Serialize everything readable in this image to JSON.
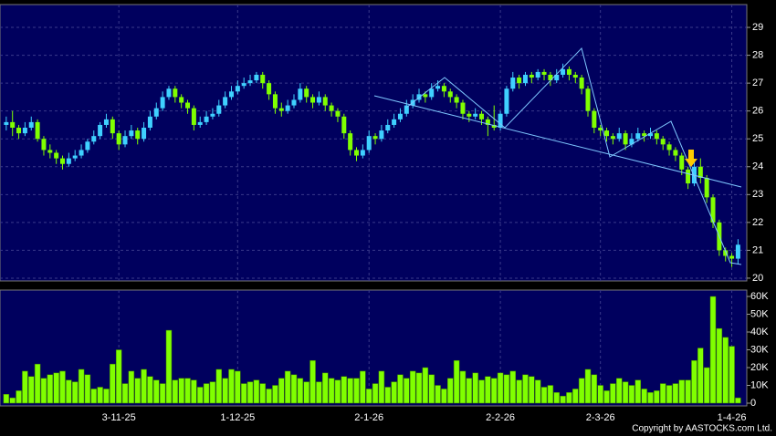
{
  "chart_data": {
    "type": "candlestick",
    "xlim": [
      -1,
      118.4
    ],
    "xticks": [
      {
        "value": 18,
        "label": "3-11-25"
      },
      {
        "value": 37,
        "label": "1-12-25"
      },
      {
        "value": 58,
        "label": "2-1-26"
      },
      {
        "value": 79,
        "label": "2-2-26"
      },
      {
        "value": 95,
        "label": "2-3-26"
      },
      {
        "value": 116,
        "label": "1-4-26"
      }
    ],
    "ylim": [
      19.9,
      29.82
    ],
    "yticks": [
      20,
      21,
      22,
      23,
      24,
      25,
      26,
      27,
      28,
      29
    ],
    "grid": true,
    "up_color": "#3fd0ff",
    "down_color": "#80ff00",
    "open": [
      25.5,
      25.6,
      25.4,
      25.2,
      25.4,
      25.6,
      25.0,
      24.6,
      24.5,
      24.3,
      24.1,
      24.3,
      24.4,
      24.6,
      24.9,
      25.1,
      25.5,
      25.7,
      25.2,
      24.8,
      25.1,
      25.3,
      25.0,
      25.4,
      25.8,
      26.1,
      26.5,
      26.8,
      26.5,
      26.3,
      26.1,
      25.5,
      25.6,
      25.8,
      25.9,
      26.2,
      26.5,
      26.7,
      26.9,
      27.0,
      27.1,
      27.3,
      27.0,
      26.6,
      26.1,
      26.0,
      26.2,
      26.4,
      26.8,
      26.5,
      26.3,
      26.5,
      26.2,
      26.0,
      25.8,
      25.2,
      24.6,
      24.4,
      24.6,
      25.1,
      25.0,
      25.3,
      25.5,
      25.7,
      25.9,
      26.2,
      26.4,
      26.6,
      26.5,
      26.8,
      26.9,
      26.7,
      26.5,
      26.3,
      25.9,
      25.8,
      25.9,
      25.7,
      25.5,
      25.4,
      25.9,
      26.8,
      27.2,
      27.0,
      27.3,
      27.2,
      27.4,
      27.3,
      27.1,
      27.3,
      27.5,
      27.3,
      27.2,
      26.8,
      26.0,
      25.4,
      25.3,
      25.1,
      25.0,
      25.2,
      24.8,
      25.0,
      25.2,
      25.1,
      25.2,
      25.0,
      24.8,
      24.6,
      24.4,
      23.9,
      23.4,
      24.0,
      23.6,
      22.9,
      22.0,
      21.0,
      20.8,
      20.7
    ],
    "high": [
      25.8,
      26.0,
      25.5,
      25.6,
      25.8,
      25.7,
      25.1,
      24.8,
      24.6,
      24.4,
      24.5,
      24.6,
      24.8,
      25.0,
      25.3,
      25.6,
      25.9,
      25.8,
      25.3,
      25.3,
      25.5,
      25.4,
      25.6,
      26.0,
      26.3,
      26.7,
      26.9,
      26.9,
      26.6,
      26.4,
      26.2,
      25.8,
      26.0,
      26.1,
      26.4,
      26.7,
      26.9,
      27.1,
      27.2,
      27.3,
      27.4,
      27.4,
      27.1,
      26.7,
      26.3,
      26.4,
      26.6,
      27.0,
      26.9,
      26.6,
      26.7,
      26.6,
      26.3,
      26.1,
      25.9,
      25.3,
      24.7,
      24.8,
      25.3,
      25.2,
      25.5,
      25.7,
      25.9,
      26.1,
      26.4,
      26.6,
      26.8,
      26.7,
      27.0,
      27.1,
      27.0,
      26.8,
      26.6,
      26.4,
      26.0,
      26.1,
      26.0,
      25.8,
      26.2,
      26.0,
      26.9,
      27.4,
      27.3,
      27.4,
      27.4,
      27.5,
      27.5,
      27.4,
      27.5,
      27.7,
      27.6,
      27.4,
      27.3,
      26.9,
      26.1,
      25.5,
      25.4,
      25.2,
      25.4,
      25.3,
      25.2,
      25.4,
      25.3,
      25.4,
      25.3,
      25.1,
      24.9,
      24.7,
      24.5,
      24.0,
      24.2,
      24.3,
      23.7,
      23.0,
      22.1,
      21.1,
      20.9,
      21.4
    ],
    "low": [
      25.3,
      25.1,
      25.0,
      25.1,
      25.3,
      24.9,
      24.4,
      24.3,
      24.1,
      23.9,
      24.0,
      24.2,
      24.3,
      24.5,
      24.8,
      25.0,
      25.4,
      25.0,
      24.6,
      24.7,
      25.0,
      24.8,
      24.9,
      25.3,
      25.7,
      26.0,
      26.4,
      26.3,
      26.1,
      25.9,
      25.3,
      25.4,
      25.5,
      25.7,
      25.8,
      26.1,
      26.4,
      26.6,
      26.8,
      26.9,
      27.0,
      26.8,
      26.4,
      25.9,
      25.8,
      25.9,
      26.1,
      26.3,
      26.3,
      26.1,
      26.2,
      26.0,
      25.8,
      25.6,
      25.0,
      24.4,
      24.2,
      24.3,
      24.5,
      24.8,
      24.9,
      25.2,
      25.4,
      25.6,
      25.8,
      26.1,
      26.3,
      26.3,
      26.4,
      26.7,
      26.5,
      26.3,
      26.1,
      25.7,
      25.6,
      25.7,
      25.5,
      25.1,
      25.3,
      25.3,
      25.8,
      26.7,
      26.8,
      26.9,
      27.0,
      27.1,
      27.1,
      26.9,
      27.0,
      27.2,
      27.1,
      27.0,
      26.6,
      25.8,
      25.2,
      25.1,
      24.9,
      24.8,
      24.9,
      24.6,
      24.7,
      24.9,
      24.9,
      25.0,
      24.8,
      24.6,
      24.4,
      24.2,
      23.7,
      23.2,
      23.3,
      23.4,
      22.7,
      21.8,
      20.8,
      20.6,
      20.4,
      20.5
    ],
    "close": [
      25.6,
      25.4,
      25.2,
      25.4,
      25.6,
      25.0,
      24.6,
      24.5,
      24.3,
      24.1,
      24.3,
      24.4,
      24.6,
      24.9,
      25.1,
      25.5,
      25.7,
      25.2,
      24.8,
      25.1,
      25.3,
      25.0,
      25.4,
      25.8,
      26.1,
      26.5,
      26.8,
      26.5,
      26.3,
      26.1,
      25.5,
      25.6,
      25.8,
      25.9,
      26.2,
      26.5,
      26.7,
      26.9,
      27.0,
      27.1,
      27.3,
      27.0,
      26.6,
      26.1,
      26.0,
      26.2,
      26.4,
      26.8,
      26.5,
      26.3,
      26.5,
      26.2,
      26.0,
      25.8,
      25.2,
      24.6,
      24.4,
      24.6,
      25.1,
      25.0,
      25.3,
      25.5,
      25.7,
      25.9,
      26.2,
      26.4,
      26.6,
      26.5,
      26.8,
      26.9,
      26.7,
      26.5,
      26.3,
      25.9,
      25.8,
      25.9,
      25.7,
      25.5,
      25.4,
      25.9,
      26.8,
      27.2,
      27.0,
      27.3,
      27.2,
      27.4,
      27.3,
      27.1,
      27.3,
      27.5,
      27.3,
      27.2,
      26.8,
      26.0,
      25.4,
      25.3,
      25.1,
      25.0,
      25.2,
      24.8,
      25.0,
      25.2,
      25.1,
      25.2,
      25.0,
      24.8,
      24.6,
      24.4,
      23.9,
      23.4,
      24.0,
      23.6,
      22.9,
      22.0,
      21.0,
      20.8,
      20.7,
      21.2
    ],
    "volume": {
      "color": "#80ff00",
      "ylim": [
        0,
        63600
      ],
      "yticks": [
        0,
        {
          "value": 10000,
          "label": "10K"
        },
        {
          "value": 20000,
          "label": "20K"
        },
        {
          "value": 30000,
          "label": "30K"
        },
        {
          "value": 40000,
          "label": "40K"
        },
        {
          "value": 50000,
          "label": "50K"
        },
        {
          "value": 60000,
          "label": "60K"
        }
      ],
      "values": [
        5000,
        3000,
        7000,
        18000,
        15000,
        22000,
        14000,
        16000,
        17000,
        18000,
        13000,
        12000,
        19000,
        16000,
        8000,
        9000,
        8000,
        22000,
        30000,
        11000,
        18000,
        14000,
        19000,
        15000,
        13000,
        11000,
        41000,
        13000,
        14000,
        14000,
        13000,
        9000,
        11000,
        12000,
        19000,
        14000,
        19000,
        18000,
        11000,
        12000,
        13000,
        11000,
        8000,
        10000,
        14000,
        18000,
        16000,
        14000,
        12000,
        24000,
        12000,
        17000,
        14000,
        13000,
        15000,
        14000,
        14000,
        18000,
        8000,
        11000,
        18000,
        9000,
        12000,
        16000,
        14000,
        18000,
        17000,
        20000,
        16000,
        10000,
        8000,
        14000,
        24000,
        18000,
        14000,
        17000,
        13000,
        15000,
        14000,
        17000,
        16000,
        18000,
        13000,
        16000,
        15000,
        13000,
        9000,
        10000,
        6000,
        4000,
        6000,
        8000,
        14000,
        19000,
        16000,
        10000,
        7000,
        11000,
        14000,
        12000,
        10000,
        13000,
        8000,
        6000,
        7000,
        11000,
        10000,
        11000,
        13000,
        13000,
        24000,
        31000,
        20000,
        60000,
        42000,
        37000,
        32000,
        3000
      ]
    }
  },
  "copyright": "Copyright by AASTOCKS.com Ltd."
}
